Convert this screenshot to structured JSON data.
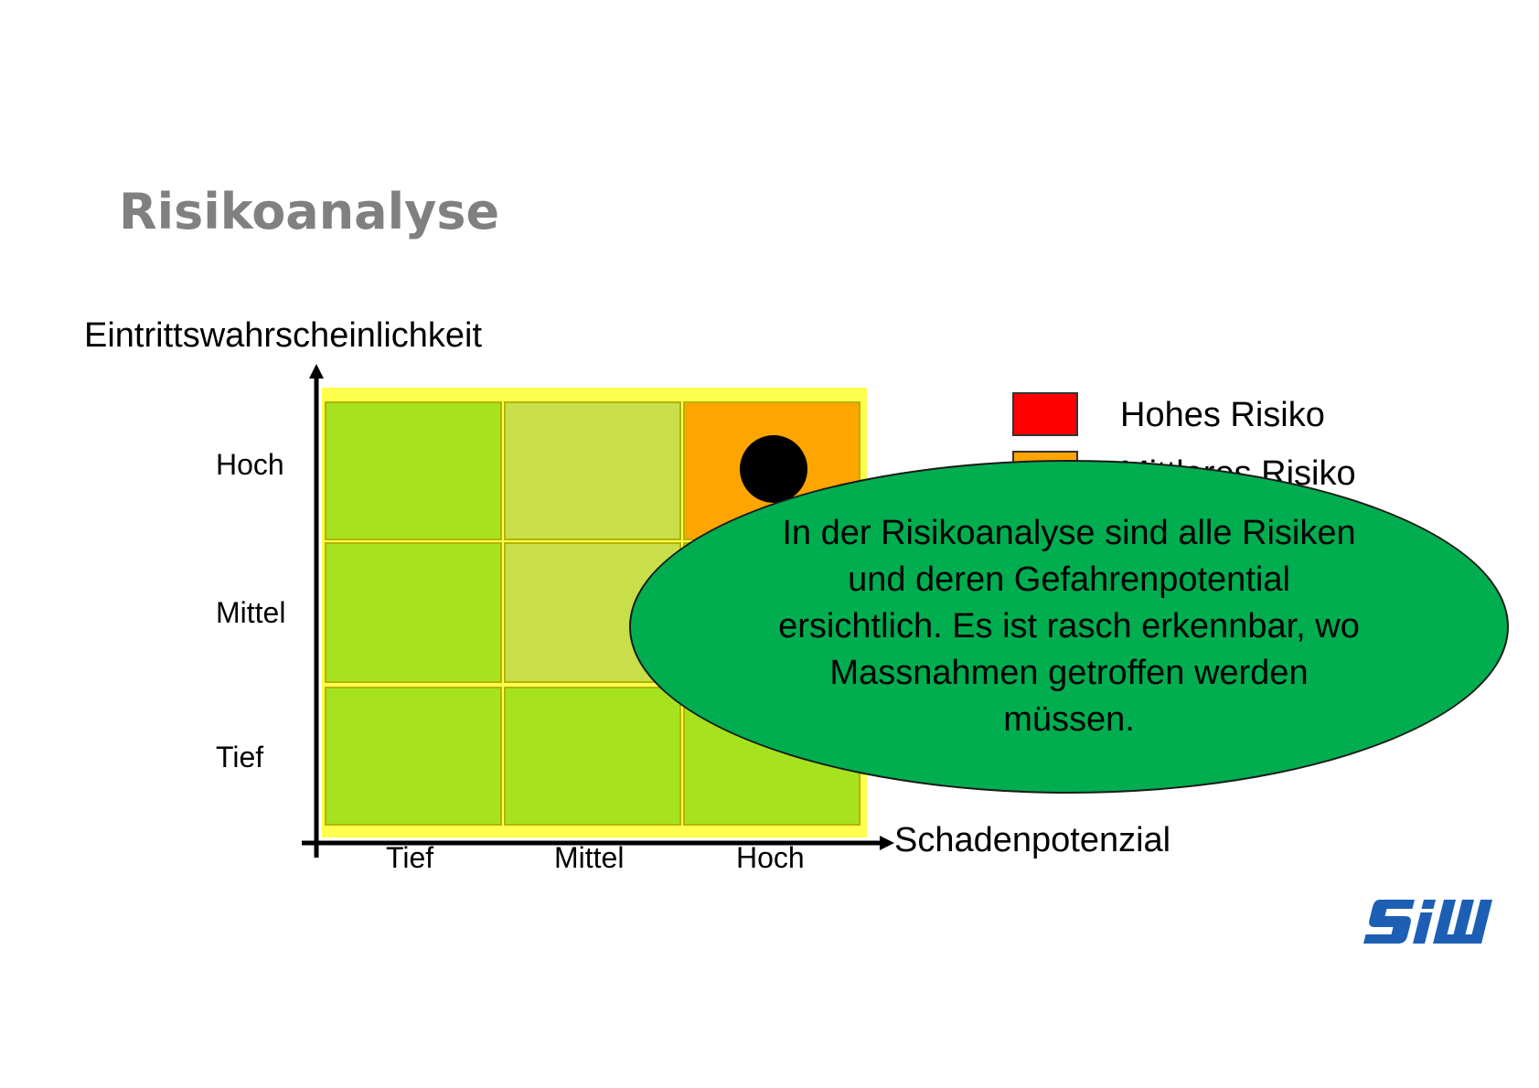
{
  "title": "Risikoanalyse",
  "matrix": {
    "y_axis_label": "Eintrittswahrscheinlichkeit",
    "x_axis_label": "Schadenpotenzial",
    "rows": [
      "Hoch",
      "Mittel",
      "Tief"
    ],
    "columns": [
      "Tief",
      "Mittel",
      "Hoch"
    ],
    "cells": [
      [
        "green",
        "light-green",
        "orange"
      ],
      [
        "green",
        "light-green",
        "covered"
      ],
      [
        "green",
        "green",
        "green"
      ]
    ],
    "marker": {
      "row": "Hoch",
      "column": "Hoch"
    }
  },
  "legend": [
    {
      "label": "Hohes Risiko",
      "color": "#ff0000"
    },
    {
      "label": "Mittleres Risiko",
      "color": "#ffa500"
    }
  ],
  "callout": {
    "text": "In der Risikoanalyse sind alle Risiken und deren Gefahrenpotential ersichtlich. Es ist rasch erkennbar, wo Massnahmen getroffen werden müssen.",
    "color": "#00ad4f"
  },
  "colors": {
    "green": "#a6e31e",
    "light_green": "#c8df4a",
    "orange": "#ffa500",
    "yellow_frame": "#ffff4d",
    "title_gray": "#808080",
    "logo_blue": "#1d5fb4"
  },
  "logo": {
    "text": "SIW"
  }
}
